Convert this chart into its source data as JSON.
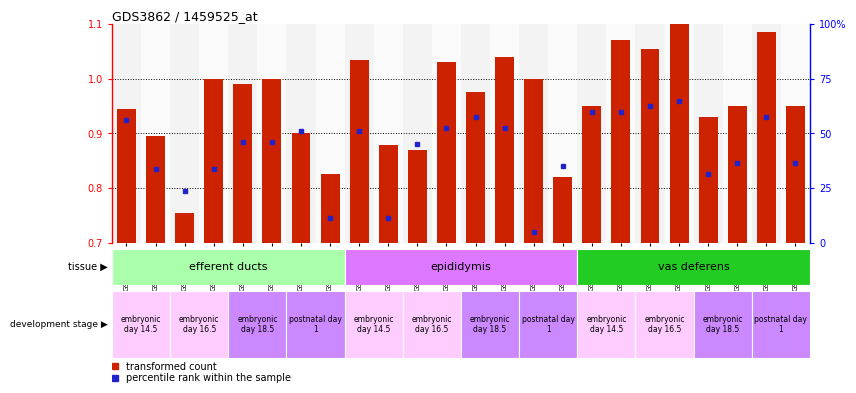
{
  "title": "GDS3862 / 1459525_at",
  "samples": [
    "GSM560923",
    "GSM560924",
    "GSM560925",
    "GSM560926",
    "GSM560927",
    "GSM560928",
    "GSM560929",
    "GSM560930",
    "GSM560931",
    "GSM560932",
    "GSM560933",
    "GSM560934",
    "GSM560935",
    "GSM560936",
    "GSM560937",
    "GSM560938",
    "GSM560939",
    "GSM560940",
    "GSM560941",
    "GSM560942",
    "GSM560943",
    "GSM560944",
    "GSM560945",
    "GSM560946"
  ],
  "bar_values": [
    0.944,
    0.895,
    0.755,
    1.0,
    0.99,
    1.0,
    0.9,
    0.825,
    1.035,
    0.878,
    0.87,
    1.03,
    0.975,
    1.04,
    1.0,
    0.82,
    0.95,
    1.07,
    1.055,
    1.1,
    0.93,
    0.95,
    1.085,
    0.95
  ],
  "dot_values": [
    0.925,
    0.835,
    0.795,
    0.835,
    0.885,
    0.885,
    0.905,
    0.745,
    0.905,
    0.745,
    0.88,
    0.91,
    0.93,
    0.91,
    0.72,
    0.84,
    0.94,
    0.94,
    0.95,
    0.96,
    0.825,
    0.845,
    0.93,
    0.845
  ],
  "ylim_left": [
    0.7,
    1.1
  ],
  "ylim_right": [
    0,
    100
  ],
  "yticks_left": [
    0.7,
    0.8,
    0.9,
    1.0,
    1.1
  ],
  "yticks_right": [
    0,
    25,
    50,
    75,
    100
  ],
  "ytick_right_labels": [
    "0",
    "25",
    "50",
    "75",
    "100%"
  ],
  "bar_color": "#cc2200",
  "dot_color": "#2222cc",
  "tissue_groups": [
    {
      "label": "efferent ducts",
      "start": 0,
      "end": 8,
      "color": "#aaffaa"
    },
    {
      "label": "epididymis",
      "start": 8,
      "end": 16,
      "color": "#dd77ff"
    },
    {
      "label": "vas deferens",
      "start": 16,
      "end": 24,
      "color": "#22cc22"
    }
  ],
  "dev_groups": [
    {
      "label": "embryonic\nday 14.5",
      "start": 0,
      "end": 2,
      "color": "#ffccff"
    },
    {
      "label": "embryonic\nday 16.5",
      "start": 2,
      "end": 4,
      "color": "#ffccff"
    },
    {
      "label": "embryonic\nday 18.5",
      "start": 4,
      "end": 6,
      "color": "#cc88ff"
    },
    {
      "label": "postnatal day\n1",
      "start": 6,
      "end": 8,
      "color": "#cc88ff"
    },
    {
      "label": "embryonic\nday 14.5",
      "start": 8,
      "end": 10,
      "color": "#ffccff"
    },
    {
      "label": "embryonic\nday 16.5",
      "start": 10,
      "end": 12,
      "color": "#ffccff"
    },
    {
      "label": "embryonic\nday 18.5",
      "start": 12,
      "end": 14,
      "color": "#cc88ff"
    },
    {
      "label": "postnatal day\n1",
      "start": 14,
      "end": 16,
      "color": "#cc88ff"
    },
    {
      "label": "embryonic\nday 14.5",
      "start": 16,
      "end": 18,
      "color": "#ffccff"
    },
    {
      "label": "embryonic\nday 16.5",
      "start": 18,
      "end": 20,
      "color": "#ffccff"
    },
    {
      "label": "embryonic\nday 18.5",
      "start": 20,
      "end": 22,
      "color": "#cc88ff"
    },
    {
      "label": "postnatal day\n1",
      "start": 22,
      "end": 24,
      "color": "#cc88ff"
    }
  ],
  "col_bg_colors": [
    "#e8e8e8",
    "#f8f8f8"
  ],
  "legend_items": [
    {
      "label": "transformed count",
      "color": "#cc2200"
    },
    {
      "label": "percentile rank within the sample",
      "color": "#2222cc"
    }
  ],
  "tissue_label": "tissue",
  "dev_label": "development stage"
}
